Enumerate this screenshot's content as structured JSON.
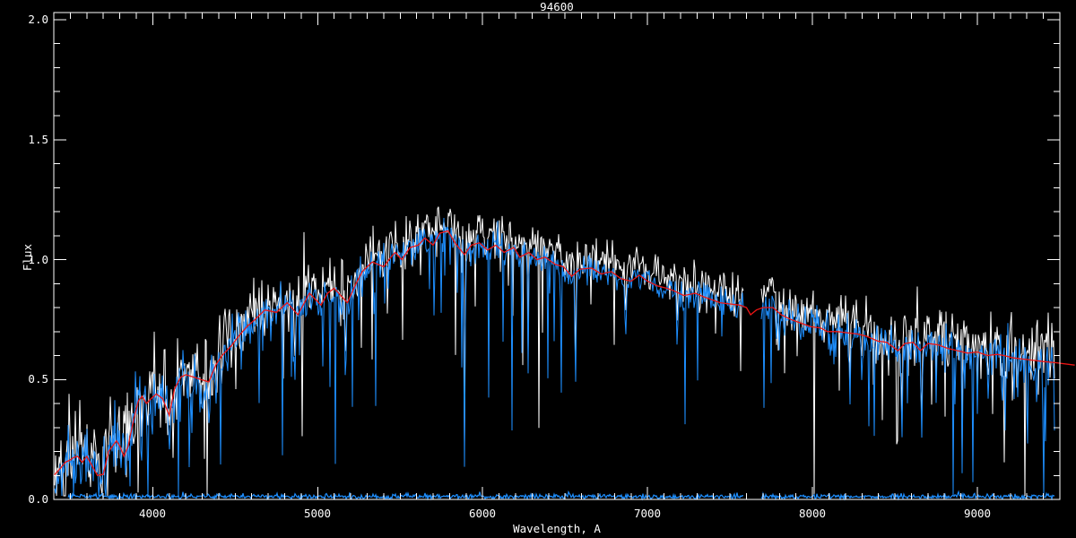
{
  "page": {
    "background": "#000000",
    "foreground": "#ffffff"
  },
  "chart_data": {
    "type": "line",
    "title": "94600",
    "xlabel": "Wavelength, A",
    "ylabel": "Flux",
    "x_range": [
      3400,
      9500
    ],
    "y_range": [
      0.0,
      2.0
    ],
    "grid": false,
    "legend": null,
    "x_ticks": {
      "major": [
        4000,
        5000,
        6000,
        7000,
        8000,
        9000
      ],
      "labels": [
        "4000",
        "5000",
        "6000",
        "7000",
        "8000",
        "9000"
      ],
      "minor_step": 100
    },
    "y_ticks": {
      "major": [
        0.0,
        0.5,
        1.0,
        1.5,
        2.0
      ],
      "labels": [
        "0.0",
        "0.5",
        "1.0",
        "1.5",
        "2.0"
      ],
      "minor_step": 0.1
    },
    "series": [
      {
        "name": "observed-spectrum-raw",
        "color": "#ffffff",
        "style": "noisy"
      },
      {
        "name": "observed-spectrum",
        "color": "#1E8FFF",
        "style": "noisy"
      },
      {
        "name": "error-spectrum",
        "color": "#1E8FFF",
        "style": "noisy-baseline",
        "level": 0.012
      },
      {
        "name": "template-fit",
        "color": "#ED1515",
        "style": "smooth"
      }
    ],
    "telluric_gap": [
      7586,
      7689
    ],
    "noise_seed": 42,
    "noise_profile": [
      [
        3400,
        0.07
      ],
      [
        3950,
        0.075
      ],
      [
        4050,
        0.065
      ],
      [
        4400,
        0.06
      ],
      [
        4800,
        0.045
      ],
      [
        5200,
        0.04
      ],
      [
        5600,
        0.035
      ],
      [
        6200,
        0.033
      ],
      [
        6800,
        0.03
      ],
      [
        7400,
        0.028
      ],
      [
        7700,
        0.035
      ],
      [
        8200,
        0.04
      ],
      [
        8700,
        0.045
      ],
      [
        9100,
        0.05
      ],
      [
        9470,
        0.06
      ]
    ],
    "spike_profile": [
      [
        3400,
        0.08
      ],
      [
        4000,
        0.09
      ],
      [
        4300,
        0.12
      ],
      [
        5000,
        0.12
      ],
      [
        5600,
        0.09
      ],
      [
        6100,
        0.1
      ],
      [
        6600,
        0.05
      ],
      [
        7100,
        0.05
      ],
      [
        7580,
        0.04
      ],
      [
        7700,
        0.08
      ],
      [
        8100,
        0.1
      ],
      [
        8700,
        0.1
      ],
      [
        9470,
        0.11
      ]
    ],
    "absorption_lines": [
      [
        3933,
        0.15,
        10
      ],
      [
        3969,
        0.14,
        10
      ],
      [
        4101,
        0.2,
        12
      ],
      [
        4227,
        0.3,
        8
      ],
      [
        4300,
        0.32,
        10
      ],
      [
        4340,
        0.3,
        10
      ],
      [
        4383,
        0.36,
        8
      ],
      [
        4861,
        0.42,
        10
      ],
      [
        5169,
        0.38,
        9
      ],
      [
        5890,
        0.13,
        9
      ],
      [
        6276,
        0.52,
        7
      ],
      [
        6563,
        0.38,
        9
      ],
      [
        6867,
        0.62,
        10
      ],
      [
        7180,
        0.57,
        8
      ],
      [
        8227,
        0.34,
        8
      ],
      [
        8300,
        0.42,
        7
      ],
      [
        8542,
        0.17,
        9
      ],
      [
        8662,
        0.2,
        9
      ],
      [
        8750,
        0.38,
        6
      ],
      [
        9000,
        0.34,
        6
      ],
      [
        9064,
        0.36,
        6
      ],
      [
        9150,
        0.3,
        7
      ],
      [
        9245,
        0.4,
        6
      ],
      [
        9340,
        0.42,
        6
      ]
    ],
    "base_curve": [
      [
        3400,
        0.1
      ],
      [
        3440,
        0.13
      ],
      [
        3470,
        0.155
      ],
      [
        3500,
        0.165
      ],
      [
        3520,
        0.175
      ],
      [
        3545,
        0.18
      ],
      [
        3572,
        0.155
      ],
      [
        3600,
        0.18
      ],
      [
        3632,
        0.14
      ],
      [
        3665,
        0.1
      ],
      [
        3700,
        0.105
      ],
      [
        3732,
        0.2
      ],
      [
        3780,
        0.245
      ],
      [
        3802,
        0.22
      ],
      [
        3825,
        0.18
      ],
      [
        3850,
        0.22
      ],
      [
        3880,
        0.32
      ],
      [
        3912,
        0.41
      ],
      [
        3935,
        0.43
      ],
      [
        3962,
        0.4
      ],
      [
        3990,
        0.42
      ],
      [
        4022,
        0.44
      ],
      [
        4060,
        0.42
      ],
      [
        4100,
        0.35
      ],
      [
        4132,
        0.46
      ],
      [
        4170,
        0.51
      ],
      [
        4200,
        0.52
      ],
      [
        4250,
        0.51
      ],
      [
        4292,
        0.5
      ],
      [
        4340,
        0.49
      ],
      [
        4382,
        0.56
      ],
      [
        4420,
        0.6
      ],
      [
        4476,
        0.64
      ],
      [
        4520,
        0.68
      ],
      [
        4570,
        0.72
      ],
      [
        4620,
        0.75
      ],
      [
        4680,
        0.79
      ],
      [
        4750,
        0.78
      ],
      [
        4815,
        0.82
      ],
      [
        4880,
        0.77
      ],
      [
        4950,
        0.86
      ],
      [
        5020,
        0.81
      ],
      [
        5060,
        0.86
      ],
      [
        5100,
        0.88
      ],
      [
        5180,
        0.82
      ],
      [
        5232,
        0.9
      ],
      [
        5270,
        0.95
      ],
      [
        5330,
        0.99
      ],
      [
        5400,
        0.97
      ],
      [
        5432,
        1.0
      ],
      [
        5470,
        1.03
      ],
      [
        5510,
        1.0
      ],
      [
        5560,
        1.05
      ],
      [
        5610,
        1.06
      ],
      [
        5650,
        1.09
      ],
      [
        5700,
        1.06
      ],
      [
        5740,
        1.11
      ],
      [
        5790,
        1.12
      ],
      [
        5832,
        1.07
      ],
      [
        5890,
        1.02
      ],
      [
        5932,
        1.06
      ],
      [
        5980,
        1.07
      ],
      [
        6030,
        1.04
      ],
      [
        6080,
        1.06
      ],
      [
        6130,
        1.03
      ],
      [
        6190,
        1.05
      ],
      [
        6225,
        1.01
      ],
      [
        6280,
        1.03
      ],
      [
        6330,
        1.0
      ],
      [
        6380,
        1.01
      ],
      [
        6440,
        0.98
      ],
      [
        6490,
        0.97
      ],
      [
        6540,
        0.93
      ],
      [
        6590,
        0.96
      ],
      [
        6660,
        0.965
      ],
      [
        6720,
        0.94
      ],
      [
        6780,
        0.95
      ],
      [
        6840,
        0.92
      ],
      [
        6900,
        0.91
      ],
      [
        6950,
        0.935
      ],
      [
        7000,
        0.91
      ],
      [
        7060,
        0.89
      ],
      [
        7120,
        0.88
      ],
      [
        7160,
        0.87
      ],
      [
        7220,
        0.85
      ],
      [
        7290,
        0.86
      ],
      [
        7340,
        0.845
      ],
      [
        7380,
        0.835
      ],
      [
        7440,
        0.82
      ],
      [
        7500,
        0.815
      ],
      [
        7560,
        0.81
      ],
      [
        7600,
        0.8
      ],
      [
        7625,
        0.77
      ],
      [
        7660,
        0.79
      ],
      [
        7700,
        0.8
      ],
      [
        7760,
        0.8
      ],
      [
        7810,
        0.77
      ],
      [
        7870,
        0.75
      ],
      [
        7930,
        0.735
      ],
      [
        7990,
        0.72
      ],
      [
        8050,
        0.715
      ],
      [
        8090,
        0.7
      ],
      [
        8150,
        0.7
      ],
      [
        8210,
        0.695
      ],
      [
        8270,
        0.69
      ],
      [
        8330,
        0.68
      ],
      [
        8395,
        0.66
      ],
      [
        8450,
        0.655
      ],
      [
        8520,
        0.62
      ],
      [
        8560,
        0.65
      ],
      [
        8610,
        0.655
      ],
      [
        8655,
        0.62
      ],
      [
        8700,
        0.65
      ],
      [
        8760,
        0.645
      ],
      [
        8820,
        0.63
      ],
      [
        8880,
        0.62
      ],
      [
        8940,
        0.61
      ],
      [
        9000,
        0.615
      ],
      [
        9060,
        0.6
      ],
      [
        9120,
        0.605
      ],
      [
        9160,
        0.6
      ],
      [
        9220,
        0.59
      ],
      [
        9280,
        0.585
      ],
      [
        9340,
        0.58
      ],
      [
        9400,
        0.575
      ],
      [
        9475,
        0.57
      ],
      [
        9590,
        0.56
      ]
    ]
  }
}
